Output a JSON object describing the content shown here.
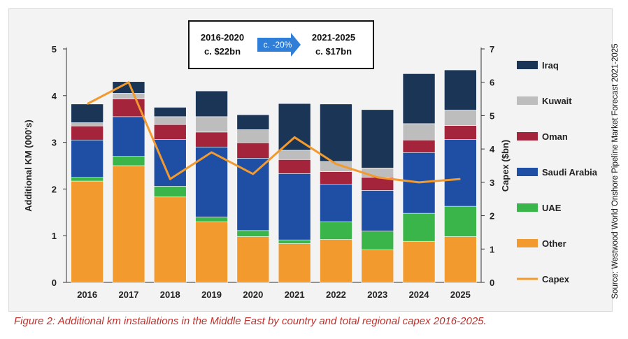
{
  "caption": "Figure 2: Additional km installations in the Middle East by country and total regional capex 2016-2025.",
  "source": "Source: Westwood World Onshore Pipeline Market Forecast 2021-2025",
  "callout": {
    "left_period": "2016-2020",
    "left_value": "c. $22bn",
    "change": "c. -20%",
    "right_period": "2021-2025",
    "right_value": "c. $17bn"
  },
  "chart_data": {
    "type": "bar",
    "stacked": true,
    "title": "",
    "categories": [
      "2016",
      "2017",
      "2018",
      "2019",
      "2020",
      "2021",
      "2022",
      "2023",
      "2024",
      "2025"
    ],
    "ylabel": "Additional KM (000's)",
    "ylim": [
      0,
      5
    ],
    "yticks": [
      0,
      1,
      2,
      3,
      4,
      5
    ],
    "y2label": "Capex ($bn)",
    "y2lim": [
      0,
      7
    ],
    "y2ticks": [
      0,
      1,
      2,
      3,
      4,
      5,
      6,
      7
    ],
    "grid": false,
    "legend_position": "right",
    "series": [
      {
        "name": "Other",
        "color": "#f29a2e",
        "values": [
          2.17,
          2.5,
          1.83,
          1.3,
          0.98,
          0.83,
          0.92,
          0.7,
          0.88,
          0.98
        ]
      },
      {
        "name": "UAE",
        "color": "#3ab54a",
        "values": [
          0.08,
          0.2,
          0.23,
          0.1,
          0.13,
          0.08,
          0.38,
          0.4,
          0.6,
          0.65
        ]
      },
      {
        "name": "Saudi Arabia",
        "color": "#1e4fa5",
        "values": [
          0.8,
          0.85,
          1.0,
          1.5,
          1.55,
          1.42,
          0.8,
          0.87,
          1.3,
          1.43
        ]
      },
      {
        "name": "Oman",
        "color": "#a3243b",
        "values": [
          0.3,
          0.38,
          0.32,
          0.32,
          0.33,
          0.3,
          0.27,
          0.28,
          0.27,
          0.3
        ]
      },
      {
        "name": "Kuwait",
        "color": "#bdbdbd",
        "values": [
          0.07,
          0.12,
          0.17,
          0.33,
          0.28,
          0.2,
          0.22,
          0.2,
          0.35,
          0.33
        ]
      },
      {
        "name": "Iraq",
        "color": "#1b3556",
        "values": [
          0.4,
          0.25,
          0.2,
          0.55,
          0.32,
          1.0,
          1.23,
          1.25,
          1.07,
          0.86
        ]
      }
    ],
    "line": {
      "name": "Capex",
      "color": "#f29a2e",
      "axis": "right",
      "values": [
        5.35,
        6.0,
        3.1,
        3.9,
        3.25,
        4.35,
        3.55,
        3.15,
        3.0,
        3.1
      ]
    },
    "legend": [
      "Iraq",
      "Kuwait",
      "Oman",
      "Saudi Arabia",
      "UAE",
      "Other",
      "Capex"
    ]
  }
}
